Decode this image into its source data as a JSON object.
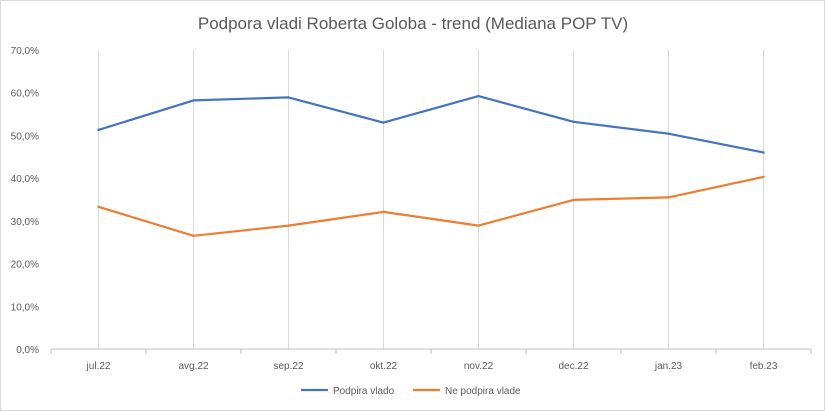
{
  "chart_data": {
    "type": "line",
    "title": "Podpora vladi Roberta Goloba - trend (Mediana  POP TV)",
    "xlabel": "",
    "ylabel": "",
    "categories": [
      "jul.22",
      "avg.22",
      "sep.22",
      "okt.22",
      "nov.22",
      "dec.22",
      "jan.23",
      "feb.23"
    ],
    "yticks": [
      "0,0%",
      "10,0%",
      "20,0%",
      "30,0%",
      "40,0%",
      "50,0%",
      "60,0%",
      "70,0%"
    ],
    "ylim": [
      0,
      70
    ],
    "grid": "vertical",
    "legend_position": "bottom",
    "series": [
      {
        "name": "Podpira vlado",
        "color": "#4472c4",
        "values": [
          51.3,
          58.2,
          58.9,
          53.0,
          59.2,
          53.2,
          50.4,
          46.0
        ]
      },
      {
        "name": "Ne podpira vlade",
        "color": "#ed7d31",
        "values": [
          33.3,
          26.5,
          28.9,
          32.1,
          28.9,
          34.9,
          35.5,
          40.3
        ]
      }
    ]
  }
}
